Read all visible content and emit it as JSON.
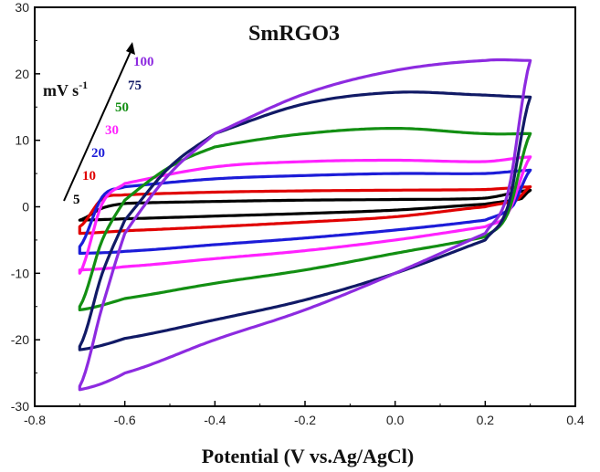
{
  "chart_data": {
    "type": "line",
    "title": "SmRGO3",
    "xlabel": "Potential (V vs.Ag/AgCl)",
    "ylabel": "",
    "xlim": [
      -0.8,
      0.4
    ],
    "ylim": [
      -30,
      30
    ],
    "x_ticks": [
      "-0.8",
      "-0.6",
      "-0.4",
      "-0.2",
      "0.0",
      "0.2",
      "0.4"
    ],
    "y_ticks": [
      "-30",
      "-20",
      "-10",
      "0",
      "10",
      "20",
      "30"
    ],
    "grid": false,
    "legend_placement": "top-left, labels stacked along an arrow",
    "unit_label": {
      "base": "mV s",
      "sup": "-1"
    },
    "series": [
      {
        "name": "5",
        "color": "#000000",
        "x_min": -0.7,
        "x_max": 0.3,
        "anodic": [
          [
            -0.7,
            -2
          ],
          [
            -0.65,
            -0.2
          ],
          [
            -0.6,
            0.5
          ],
          [
            -0.4,
            0.8
          ],
          [
            -0.2,
            1.0
          ],
          [
            0.0,
            1.1
          ],
          [
            0.2,
            1.3
          ],
          [
            0.3,
            2.5
          ]
        ],
        "cathodic": [
          [
            0.3,
            2.5
          ],
          [
            0.28,
            1.2
          ],
          [
            0.2,
            0.4
          ],
          [
            0.0,
            -0.5
          ],
          [
            -0.2,
            -1.0
          ],
          [
            -0.4,
            -1.4
          ],
          [
            -0.6,
            -1.8
          ],
          [
            -0.7,
            -2
          ]
        ]
      },
      {
        "name": "10",
        "color": "#e00000",
        "x_min": -0.7,
        "x_max": 0.3,
        "anodic": [
          [
            -0.7,
            -3
          ],
          [
            -0.65,
            1.2
          ],
          [
            -0.6,
            1.8
          ],
          [
            -0.4,
            2.2
          ],
          [
            -0.2,
            2.4
          ],
          [
            0.0,
            2.5
          ],
          [
            0.2,
            2.6
          ],
          [
            0.3,
            3.0
          ]
        ],
        "cathodic": [
          [
            0.3,
            3.0
          ],
          [
            0.27,
            1.0
          ],
          [
            0.2,
            0.0
          ],
          [
            0.0,
            -1.5
          ],
          [
            -0.2,
            -2.3
          ],
          [
            -0.4,
            -3.0
          ],
          [
            -0.6,
            -3.6
          ],
          [
            -0.7,
            -4.0
          ]
        ]
      },
      {
        "name": "20",
        "color": "#1c1cd8",
        "x_min": -0.7,
        "x_max": 0.3,
        "anodic": [
          [
            -0.7,
            -6
          ],
          [
            -0.65,
            1.5
          ],
          [
            -0.6,
            3.0
          ],
          [
            -0.4,
            4.2
          ],
          [
            -0.2,
            4.7
          ],
          [
            0.0,
            5.0
          ],
          [
            0.2,
            5.0
          ],
          [
            0.3,
            5.5
          ]
        ],
        "cathodic": [
          [
            0.3,
            5.5
          ],
          [
            0.26,
            0.0
          ],
          [
            0.2,
            -2.0
          ],
          [
            0.0,
            -3.5
          ],
          [
            -0.2,
            -4.7
          ],
          [
            -0.4,
            -5.7
          ],
          [
            -0.6,
            -6.7
          ],
          [
            -0.7,
            -7.0
          ]
        ]
      },
      {
        "name": "30",
        "color": "#ff22ff",
        "x_min": -0.7,
        "x_max": 0.3,
        "anodic": [
          [
            -0.7,
            -10
          ],
          [
            -0.65,
            0.5
          ],
          [
            -0.6,
            3.5
          ],
          [
            -0.4,
            6.0
          ],
          [
            -0.2,
            6.8
          ],
          [
            0.0,
            7.0
          ],
          [
            0.2,
            6.8
          ],
          [
            0.3,
            7.5
          ]
        ],
        "cathodic": [
          [
            0.3,
            7.5
          ],
          [
            0.25,
            -1.0
          ],
          [
            0.2,
            -3.0
          ],
          [
            0.0,
            -5.0
          ],
          [
            -0.2,
            -6.6
          ],
          [
            -0.4,
            -7.8
          ],
          [
            -0.6,
            -9.0
          ],
          [
            -0.7,
            -9.5
          ]
        ]
      },
      {
        "name": "50",
        "color": "#138f13",
        "x_min": -0.7,
        "x_max": 0.3,
        "anodic": [
          [
            -0.7,
            -15
          ],
          [
            -0.65,
            -5.0
          ],
          [
            -0.6,
            1.0
          ],
          [
            -0.5,
            6.0
          ],
          [
            -0.4,
            9.0
          ],
          [
            -0.2,
            11.0
          ],
          [
            0.0,
            11.8
          ],
          [
            0.2,
            11.0
          ],
          [
            0.3,
            11.0
          ]
        ],
        "cathodic": [
          [
            0.3,
            11.0
          ],
          [
            0.25,
            -1.0
          ],
          [
            0.2,
            -4.5
          ],
          [
            0.0,
            -7.0
          ],
          [
            -0.2,
            -9.5
          ],
          [
            -0.4,
            -11.5
          ],
          [
            -0.6,
            -13.8
          ],
          [
            -0.7,
            -15.5
          ]
        ]
      },
      {
        "name": "75",
        "color": "#111a66",
        "x_min": -0.7,
        "x_max": 0.3,
        "anodic": [
          [
            -0.7,
            -21
          ],
          [
            -0.65,
            -10.0
          ],
          [
            -0.6,
            -2.0
          ],
          [
            -0.5,
            6.0
          ],
          [
            -0.4,
            11.0
          ],
          [
            -0.2,
            15.5
          ],
          [
            0.0,
            17.2
          ],
          [
            0.2,
            16.8
          ],
          [
            0.3,
            16.5
          ]
        ],
        "cathodic": [
          [
            0.3,
            16.5
          ],
          [
            0.25,
            0.0
          ],
          [
            0.2,
            -5.0
          ],
          [
            0.0,
            -10.0
          ],
          [
            -0.2,
            -14.0
          ],
          [
            -0.4,
            -17.0
          ],
          [
            -0.6,
            -19.8
          ],
          [
            -0.7,
            -21.5
          ]
        ]
      },
      {
        "name": "100",
        "color": "#8d2be0",
        "x_min": -0.7,
        "x_max": 0.3,
        "anodic": [
          [
            -0.7,
            -27
          ],
          [
            -0.65,
            -15.0
          ],
          [
            -0.6,
            -4.0
          ],
          [
            -0.5,
            5.0
          ],
          [
            -0.4,
            11.0
          ],
          [
            -0.2,
            17.0
          ],
          [
            0.0,
            20.5
          ],
          [
            0.2,
            22.0
          ],
          [
            0.3,
            22.0
          ]
        ],
        "cathodic": [
          [
            0.3,
            22.0
          ],
          [
            0.25,
            2.0
          ],
          [
            0.2,
            -4.0
          ],
          [
            0.0,
            -10.0
          ],
          [
            -0.2,
            -15.5
          ],
          [
            -0.4,
            -20.0
          ],
          [
            -0.6,
            -25.0
          ],
          [
            -0.7,
            -27.5
          ]
        ]
      }
    ]
  }
}
